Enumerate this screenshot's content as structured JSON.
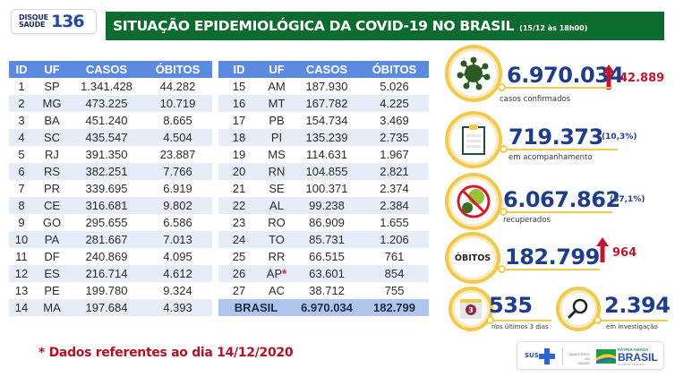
{
  "header": {
    "hotline_label_line1": "DISQUE",
    "hotline_label_line2": "SAÚDE",
    "hotline_number": "136",
    "title": "SITUAÇÃO EPIDEMIOLÓGICA DA COVID-19 NO BRASIL",
    "subtitle": "(15/12 às 18h00)"
  },
  "table": {
    "columns": [
      "ID",
      "UF",
      "CASOS",
      "ÓBITOS"
    ],
    "left_rows": [
      {
        "id": "1",
        "uf": "SP",
        "casos": "1.341.428",
        "obitos": "44.282"
      },
      {
        "id": "2",
        "uf": "MG",
        "casos": "473.225",
        "obitos": "10.719"
      },
      {
        "id": "3",
        "uf": "BA",
        "casos": "451.240",
        "obitos": "8.665"
      },
      {
        "id": "4",
        "uf": "SC",
        "casos": "435.547",
        "obitos": "4.504"
      },
      {
        "id": "5",
        "uf": "RJ",
        "casos": "391.350",
        "obitos": "23.887"
      },
      {
        "id": "6",
        "uf": "RS",
        "casos": "382.251",
        "obitos": "7.766"
      },
      {
        "id": "7",
        "uf": "PR",
        "casos": "339.695",
        "obitos": "6.919"
      },
      {
        "id": "8",
        "uf": "CE",
        "casos": "316.681",
        "obitos": "9.802"
      },
      {
        "id": "9",
        "uf": "GO",
        "casos": "295.655",
        "obitos": "6.586"
      },
      {
        "id": "10",
        "uf": "PA",
        "casos": "281.667",
        "obitos": "7.013"
      },
      {
        "id": "11",
        "uf": "DF",
        "casos": "240.869",
        "obitos": "4.095"
      },
      {
        "id": "12",
        "uf": "ES",
        "casos": "216.714",
        "obitos": "4.612"
      },
      {
        "id": "13",
        "uf": "PE",
        "casos": "199.780",
        "obitos": "9.324"
      },
      {
        "id": "14",
        "uf": "MA",
        "casos": "197.684",
        "obitos": "4.393"
      }
    ],
    "right_rows": [
      {
        "id": "15",
        "uf": "AM",
        "casos": "187.930",
        "obitos": "5.026"
      },
      {
        "id": "16",
        "uf": "MT",
        "casos": "167.782",
        "obitos": "4.225"
      },
      {
        "id": "17",
        "uf": "PB",
        "casos": "154.734",
        "obitos": "3.469"
      },
      {
        "id": "18",
        "uf": "PI",
        "casos": "135.239",
        "obitos": "2.735"
      },
      {
        "id": "19",
        "uf": "MS",
        "casos": "114.631",
        "obitos": "1.967"
      },
      {
        "id": "20",
        "uf": "RN",
        "casos": "104.855",
        "obitos": "2.821"
      },
      {
        "id": "21",
        "uf": "SE",
        "casos": "100.371",
        "obitos": "2.374"
      },
      {
        "id": "22",
        "uf": "AL",
        "casos": "99.238",
        "obitos": "2.384"
      },
      {
        "id": "23",
        "uf": "RO",
        "casos": "86.909",
        "obitos": "1.655"
      },
      {
        "id": "24",
        "uf": "TO",
        "casos": "85.731",
        "obitos": "1.206"
      },
      {
        "id": "25",
        "uf": "RR",
        "casos": "66.515",
        "obitos": "761"
      },
      {
        "id": "26",
        "uf": "AP",
        "mark": "*",
        "casos": "63.601",
        "obitos": "854"
      },
      {
        "id": "27",
        "uf": "AC",
        "casos": "38.712",
        "obitos": "755"
      }
    ],
    "total": {
      "label": "BRASIL",
      "casos": "6.970.034",
      "obitos": "182.799"
    }
  },
  "footnote": "* Dados referentes ao dia 14/12/2020",
  "stats": {
    "confirmed": {
      "value": "6.970.034",
      "delta": "42.889",
      "caption": "casos confirmados"
    },
    "monitoring": {
      "value": "719.373",
      "pct": "(10,3%)",
      "caption": "em acompanhamento"
    },
    "recovered": {
      "value": "6.067.862",
      "pct": "(87,1%)",
      "caption": "recuperados"
    },
    "deaths": {
      "badge": "ÓBITOS",
      "value": "182.799",
      "delta": "964"
    },
    "last3days": {
      "calendar_num": "3",
      "value": "535",
      "caption": "nos últimos 3 dias"
    },
    "investigation": {
      "value": "2.394",
      "caption": "em investigação"
    }
  },
  "footer_logos": {
    "sus": "SUS",
    "ministry_line1": "MINISTÉRIO DA",
    "ministry_line2": "SAÚDE",
    "gov_line1": "PÁTRIA AMADA",
    "gov_line2": "BRASIL",
    "gov_line3": "GOVERNO FEDERAL"
  },
  "colors": {
    "title_green": "#0c6b2f",
    "table_header": "#5b8ae0",
    "row_stripe": "#e6ecf8",
    "total_row": "#aec5ee",
    "number_blue": "#1f3d8a",
    "delta_red": "#c3152d",
    "ring_yellow": "#f2c94c"
  }
}
